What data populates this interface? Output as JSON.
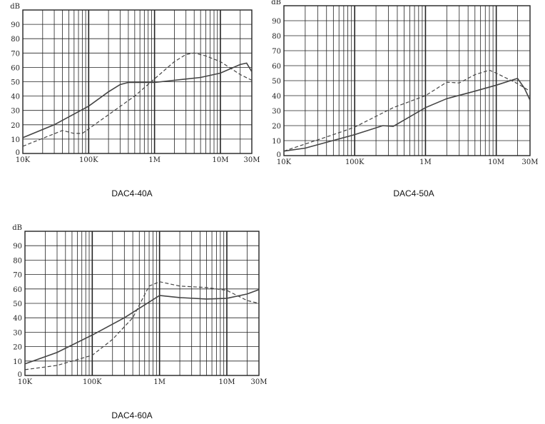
{
  "chart_data": [
    {
      "type": "line",
      "title": "DAC4-40A",
      "ylabel": "dB",
      "xscale": "log",
      "xlim": [
        10000,
        30000000
      ],
      "ylim": [
        0,
        100
      ],
      "x_ticks": [
        {
          "value": 10000,
          "label": "10K"
        },
        {
          "value": 100000,
          "label": "100K"
        },
        {
          "value": 1000000,
          "label": "1M"
        },
        {
          "value": 10000000,
          "label": "10M"
        },
        {
          "value": 30000000,
          "label": "30M"
        }
      ],
      "y_ticks": [
        "0",
        "10",
        "20",
        "30",
        "40",
        "50",
        "60",
        "70",
        "80",
        "90"
      ],
      "grid": true,
      "series": [
        {
          "style": "solid",
          "color": "#444444",
          "points": [
            [
              10000,
              11
            ],
            [
              30000,
              20
            ],
            [
              100000,
              33
            ],
            [
              200000,
              43
            ],
            [
              300000,
              48
            ],
            [
              400000,
              49.5
            ],
            [
              1000000,
              49.5
            ],
            [
              5000000,
              53
            ],
            [
              10000000,
              56
            ],
            [
              20000000,
              62
            ],
            [
              25000000,
              63
            ],
            [
              30000000,
              57
            ]
          ]
        },
        {
          "style": "dashed",
          "color": "#444444",
          "points": [
            [
              10000,
              5
            ],
            [
              40000,
              16
            ],
            [
              60000,
              14
            ],
            [
              80000,
              14
            ],
            [
              200000,
              27
            ],
            [
              500000,
              40
            ],
            [
              1000000,
              52
            ],
            [
              2000000,
              64
            ],
            [
              3000000,
              69
            ],
            [
              4000000,
              70
            ],
            [
              6000000,
              68
            ],
            [
              10000000,
              64
            ],
            [
              20000000,
              55
            ],
            [
              30000000,
              51
            ]
          ]
        }
      ]
    },
    {
      "type": "line",
      "title": "DAC4-50A",
      "ylabel": "dB",
      "xscale": "log",
      "xlim": [
        10000,
        30000000
      ],
      "ylim": [
        0,
        100
      ],
      "x_ticks": [
        {
          "value": 10000,
          "label": "10K"
        },
        {
          "value": 100000,
          "label": "100K"
        },
        {
          "value": 1000000,
          "label": "1M"
        },
        {
          "value": 10000000,
          "label": "10M"
        },
        {
          "value": 30000000,
          "label": "30M"
        }
      ],
      "y_ticks": [
        "0",
        "10",
        "20",
        "30",
        "40",
        "50",
        "60",
        "70",
        "80",
        "90"
      ],
      "grid": true,
      "series": [
        {
          "style": "solid",
          "color": "#333333",
          "points": [
            [
              10000,
              3
            ],
            [
              20000,
              5
            ],
            [
              100000,
              14
            ],
            [
              250000,
              20
            ],
            [
              350000,
              19.5
            ],
            [
              1000000,
              32
            ],
            [
              2000000,
              38
            ],
            [
              5000000,
              43
            ],
            [
              10000000,
              47
            ],
            [
              20000000,
              51.5
            ],
            [
              25000000,
              45
            ],
            [
              30000000,
              37
            ]
          ]
        },
        {
          "style": "dashed",
          "color": "#333333",
          "points": [
            [
              10000,
              3
            ],
            [
              50000,
              14
            ],
            [
              100000,
              19
            ],
            [
              350000,
              32
            ],
            [
              1000000,
              40
            ],
            [
              2000000,
              49
            ],
            [
              3000000,
              48.5
            ],
            [
              5000000,
              54
            ],
            [
              8000000,
              57
            ],
            [
              10000000,
              55
            ],
            [
              20000000,
              48
            ],
            [
              30000000,
              43
            ]
          ]
        }
      ]
    },
    {
      "type": "line",
      "title": "DAC4-60A",
      "ylabel": "dB",
      "xscale": "log",
      "xlim": [
        10000,
        30000000
      ],
      "ylim": [
        0,
        100
      ],
      "x_ticks": [
        {
          "value": 10000,
          "label": "10K"
        },
        {
          "value": 100000,
          "label": "100K"
        },
        {
          "value": 1000000,
          "label": "1M"
        },
        {
          "value": 10000000,
          "label": "10M"
        },
        {
          "value": 30000000,
          "label": "30M"
        }
      ],
      "y_ticks": [
        "0",
        "10",
        "20",
        "30",
        "40",
        "50",
        "60",
        "70",
        "80",
        "90"
      ],
      "grid": true,
      "series": [
        {
          "style": "solid",
          "color": "#333333",
          "points": [
            [
              10000,
              8
            ],
            [
              30000,
              16
            ],
            [
              100000,
              28
            ],
            [
              300000,
              40
            ],
            [
              1000000,
              55.5
            ],
            [
              2000000,
              54
            ],
            [
              5000000,
              53
            ],
            [
              10000000,
              53.5
            ],
            [
              20000000,
              56.5
            ],
            [
              30000000,
              59.5
            ]
          ]
        },
        {
          "style": "dashed",
          "color": "#333333",
          "points": [
            [
              10000,
              4
            ],
            [
              30000,
              7
            ],
            [
              100000,
              14
            ],
            [
              200000,
              25
            ],
            [
              400000,
              40
            ],
            [
              700000,
              62
            ],
            [
              1000000,
              65
            ],
            [
              2000000,
              62
            ],
            [
              5000000,
              61
            ],
            [
              10000000,
              59
            ],
            [
              20000000,
              52
            ],
            [
              30000000,
              50
            ]
          ]
        }
      ]
    }
  ]
}
